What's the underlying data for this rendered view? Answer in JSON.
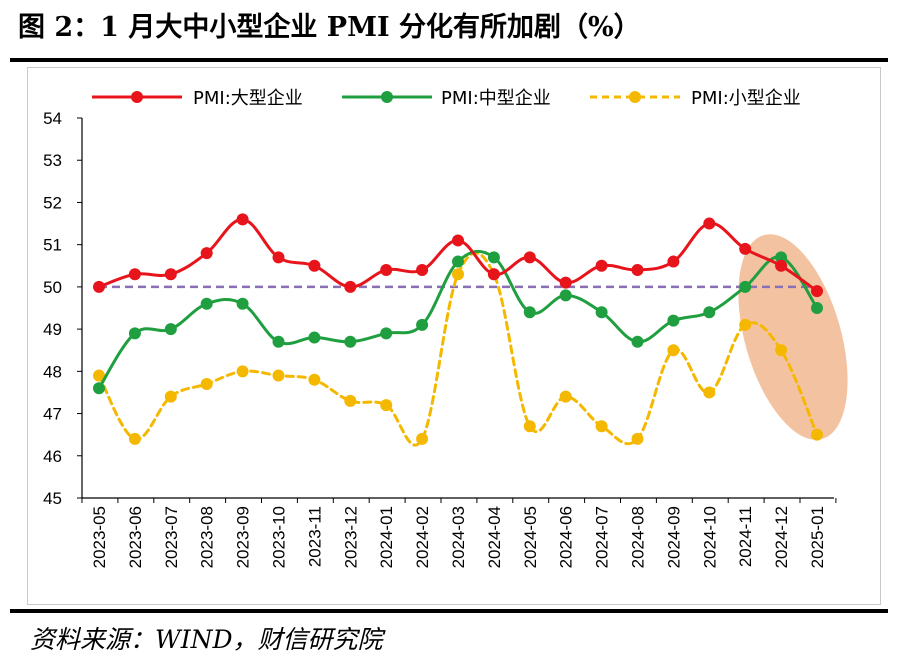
{
  "header": {
    "title": "图 2：1 月大中小型企业 PMI 分化有所加剧（%）"
  },
  "footer": {
    "source": "资料来源：WIND，财信研究院"
  },
  "colors": {
    "large": "#e8141b",
    "medium": "#1f9f3f",
    "small": "#f5b800",
    "reference": "#8a6fb5",
    "highlight": "#f0b48a"
  },
  "chart_data": {
    "type": "line",
    "title": "",
    "xlabel": "",
    "ylabel": "",
    "ylim": [
      45,
      54
    ],
    "yticks": [
      "45",
      "46",
      "47",
      "48",
      "49",
      "50",
      "51",
      "52",
      "53",
      "54"
    ],
    "grid": false,
    "legend_position": "top",
    "categories": [
      "2023-05",
      "2023-06",
      "2023-07",
      "2023-08",
      "2023-09",
      "2023-10",
      "2023-11",
      "2023-12",
      "2024-01",
      "2024-02",
      "2024-03",
      "2024-04",
      "2024-05",
      "2024-06",
      "2024-07",
      "2024-08",
      "2024-09",
      "2024-10",
      "2024-11",
      "2024-12",
      "2025-01"
    ],
    "series": [
      {
        "name": "PMI:大型企业",
        "style": "solid",
        "values": [
          50.0,
          50.3,
          50.3,
          50.8,
          51.6,
          50.7,
          50.5,
          50.0,
          50.4,
          50.4,
          51.1,
          50.3,
          50.7,
          50.1,
          50.5,
          50.4,
          50.6,
          51.5,
          50.9,
          50.5,
          49.9
        ]
      },
      {
        "name": "PMI:中型企业",
        "style": "solid",
        "values": [
          47.6,
          48.9,
          49.0,
          49.6,
          49.6,
          48.7,
          48.8,
          48.7,
          48.9,
          49.1,
          50.6,
          50.7,
          49.4,
          49.8,
          49.4,
          48.7,
          49.2,
          49.4,
          50.0,
          50.7,
          49.5
        ]
      },
      {
        "name": "PMI:小型企业",
        "style": "dashed",
        "values": [
          47.9,
          46.4,
          47.4,
          47.7,
          48.0,
          47.9,
          47.8,
          47.3,
          47.2,
          46.4,
          50.3,
          50.3,
          46.7,
          47.4,
          46.7,
          46.4,
          48.5,
          47.5,
          49.1,
          48.5,
          46.5
        ]
      }
    ],
    "reference_line": 50
  }
}
